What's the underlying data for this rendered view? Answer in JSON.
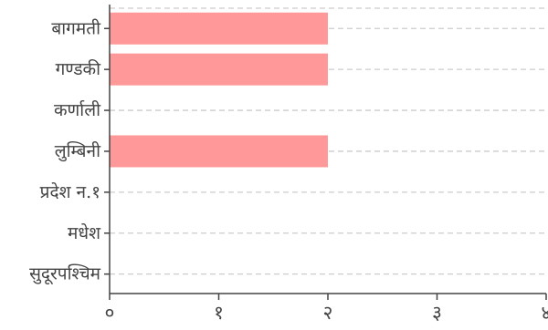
{
  "chart_data": {
    "type": "bar",
    "orientation": "horizontal",
    "categories": [
      "बागमती",
      "गण्डकी",
      "कर्णाली",
      "लुम्बिनी",
      "प्रदेश न.१",
      "मधेश",
      "सुदूरपश्चिम"
    ],
    "values": [
      2,
      2,
      0,
      2,
      0,
      0,
      0
    ],
    "xlim": [
      0,
      4
    ],
    "x_ticks": [
      0,
      1,
      2,
      3,
      4
    ],
    "x_tick_labels": [
      "०",
      "१",
      "२",
      "३",
      "४"
    ],
    "title": "",
    "xlabel": "",
    "ylabel": "",
    "grid": "horizontal dashed",
    "bar_color": "#ff9999",
    "axis_color": "#444444",
    "grid_color": "#cccccc"
  }
}
